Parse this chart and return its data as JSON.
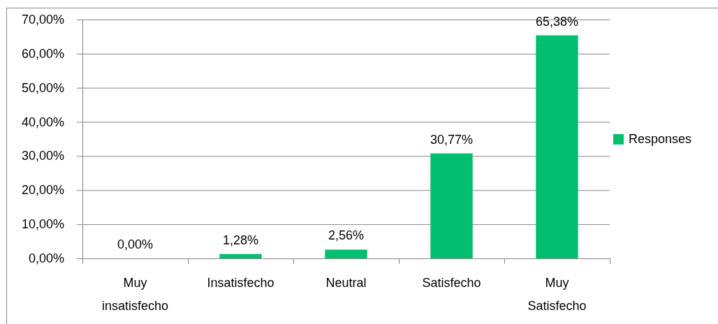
{
  "chart_data": {
    "type": "bar",
    "categories": [
      "Muy insatisfecho",
      "Insatisfecho",
      "Neutral",
      "Satisfecho",
      "Muy Satisfecho"
    ],
    "series": [
      {
        "name": "Responses",
        "color": "#00bf6f",
        "values": [
          0,
          1.28,
          2.56,
          30.77,
          65.38
        ],
        "value_labels": [
          "0,00%",
          "1,28%",
          "2,56%",
          "30,77%",
          "65,38%"
        ]
      }
    ],
    "ylim": [
      0,
      70
    ],
    "yticks": [
      {
        "value": 0,
        "label": "0,00%"
      },
      {
        "value": 10,
        "label": "10,00%"
      },
      {
        "value": 20,
        "label": "20,00%"
      },
      {
        "value": 30,
        "label": "30,00%"
      },
      {
        "value": 40,
        "label": "40,00%"
      },
      {
        "value": 50,
        "label": "50,00%"
      },
      {
        "value": 60,
        "label": "60,00%"
      },
      {
        "value": 70,
        "label": "70,00%"
      }
    ],
    "grid": "y",
    "legend": "right"
  }
}
